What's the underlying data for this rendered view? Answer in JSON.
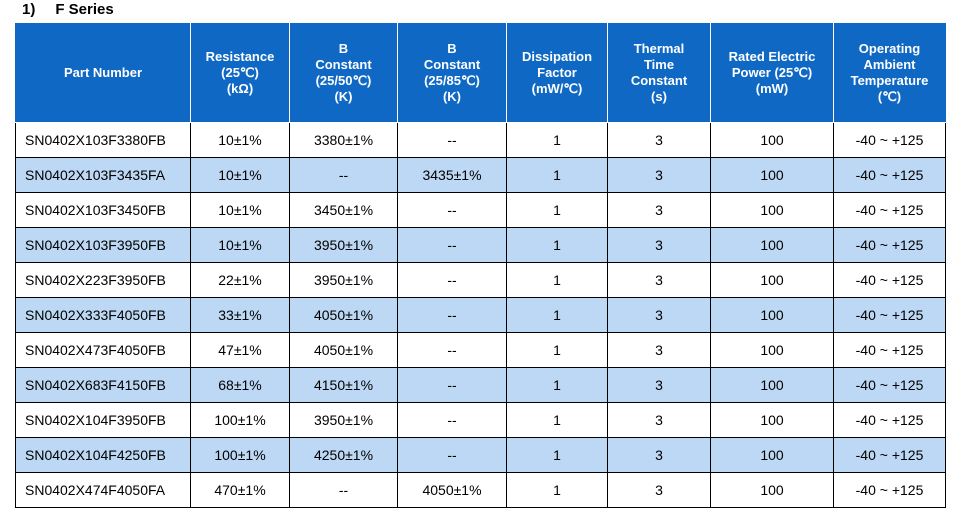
{
  "section": {
    "number": "1)",
    "title": "F Series"
  },
  "columns": [
    {
      "lines": [
        "Part Number"
      ]
    },
    {
      "lines": [
        "Resistance",
        "(25℃)",
        "(kΩ)"
      ]
    },
    {
      "lines": [
        "B",
        "Constant",
        "(25/50℃)",
        "(K)"
      ]
    },
    {
      "lines": [
        "B",
        "Constant",
        "(25/85℃)",
        "(K)"
      ]
    },
    {
      "lines": [
        "Dissipation",
        "Factor",
        "(mW/℃)"
      ]
    },
    {
      "lines": [
        "Thermal",
        "Time",
        "Constant",
        "(s)"
      ]
    },
    {
      "lines": [
        "Rated Electric",
        "Power (25℃)",
        "(mW)"
      ]
    },
    {
      "lines": [
        "Operating",
        "Ambient",
        "Temperature",
        "(℃)"
      ]
    }
  ],
  "rows": [
    [
      "SN0402X103F3380FB",
      "10±1%",
      "3380±1%",
      "--",
      "1",
      "3",
      "100",
      "-40 ~ +125"
    ],
    [
      "SN0402X103F3435FA",
      "10±1%",
      "--",
      "3435±1%",
      "1",
      "3",
      "100",
      "-40 ~ +125"
    ],
    [
      "SN0402X103F3450FB",
      "10±1%",
      "3450±1%",
      "--",
      "1",
      "3",
      "100",
      "-40 ~ +125"
    ],
    [
      "SN0402X103F3950FB",
      "10±1%",
      "3950±1%",
      "--",
      "1",
      "3",
      "100",
      "-40 ~ +125"
    ],
    [
      "SN0402X223F3950FB",
      "22±1%",
      "3950±1%",
      "--",
      "1",
      "3",
      "100",
      "-40 ~ +125"
    ],
    [
      "SN0402X333F4050FB",
      "33±1%",
      "4050±1%",
      "--",
      "1",
      "3",
      "100",
      "-40 ~ +125"
    ],
    [
      "SN0402X473F4050FB",
      "47±1%",
      "4050±1%",
      "--",
      "1",
      "3",
      "100",
      "-40 ~ +125"
    ],
    [
      "SN0402X683F4150FB",
      "68±1%",
      "4150±1%",
      "--",
      "1",
      "3",
      "100",
      "-40 ~ +125"
    ],
    [
      "SN0402X104F3950FB",
      "100±1%",
      "3950±1%",
      "--",
      "1",
      "3",
      "100",
      "-40 ~ +125"
    ],
    [
      "SN0402X104F4250FB",
      "100±1%",
      "4250±1%",
      "--",
      "1",
      "3",
      "100",
      "-40 ~ +125"
    ],
    [
      "SN0402X474F4050FA",
      "470±1%",
      "--",
      "4050±1%",
      "1",
      "3",
      "100",
      "-40 ~ +125"
    ]
  ],
  "colors": {
    "header_bg": "#0f69c4",
    "header_text": "#ffffff",
    "alt_row_bg": "#bcd8f4",
    "row_bg": "#ffffff"
  }
}
